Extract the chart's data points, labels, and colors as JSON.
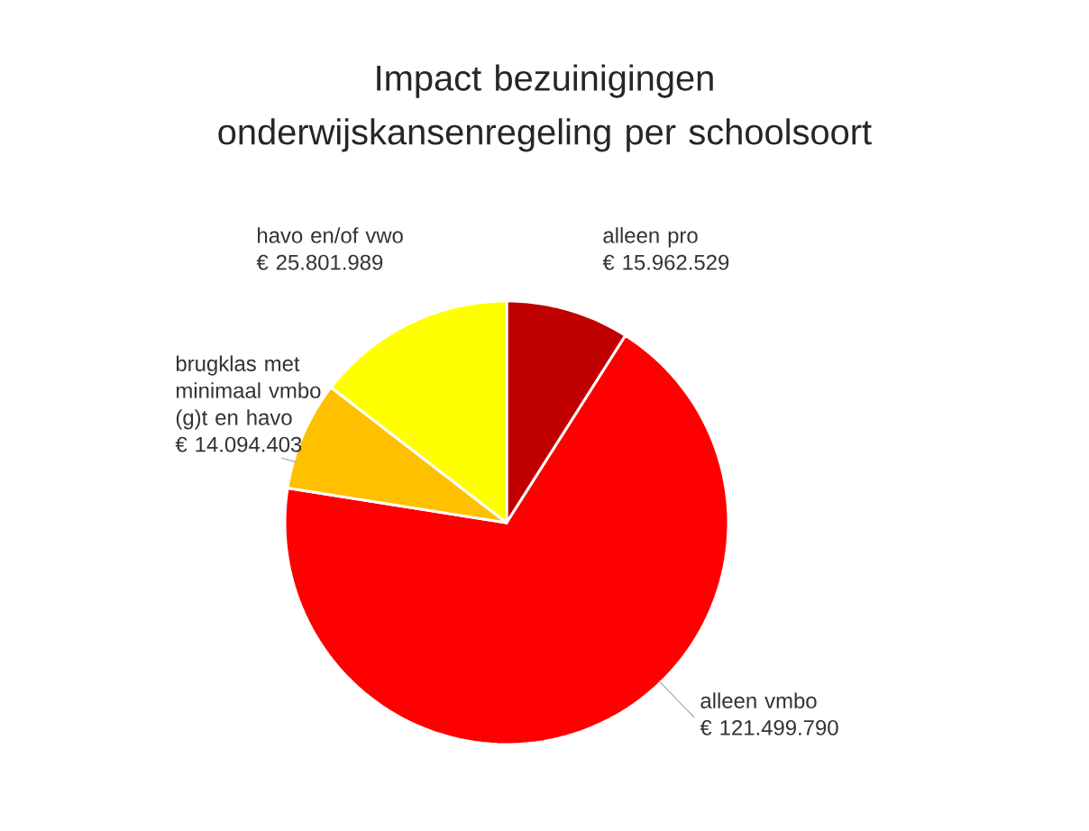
{
  "chart_data": {
    "type": "pie",
    "title": "Impact bezuinigingen onderwijskansenregeling per schoolsoort",
    "categories": [
      "alleen pro",
      "alleen vmbo",
      "brugklas met minimaal vmbo (g)t en havo",
      "havo en/of vwo"
    ],
    "values": [
      15962529,
      121499790,
      14094403,
      25801989
    ],
    "value_labels": [
      "€ 15.962.529",
      "€ 121.499.790",
      "€ 14.094.403",
      "€ 25.801.989"
    ],
    "colors": [
      "#c00000",
      "#ff0000",
      "#ffc000",
      "#ffff00"
    ]
  }
}
